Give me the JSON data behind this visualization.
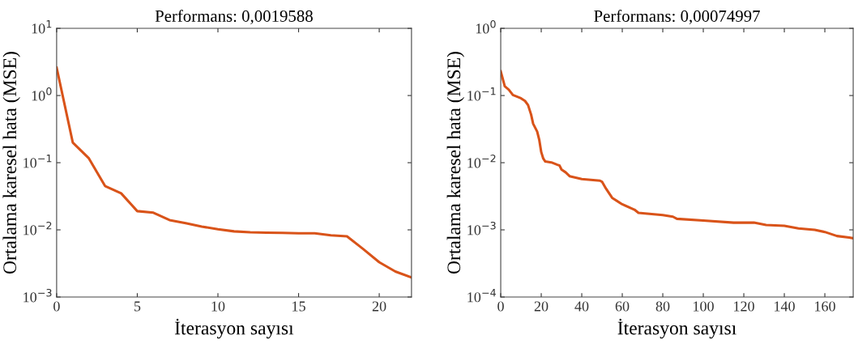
{
  "chart_data": [
    {
      "type": "line",
      "title": "Performans: 0,0019588",
      "xlabel": "İterasyon sayısı",
      "ylabel": "Ortalama karesel hata (MSE)",
      "log": "y",
      "x": [
        0,
        1,
        2,
        3,
        4,
        5,
        6,
        7,
        8,
        9,
        10,
        11,
        12,
        13,
        14,
        15,
        16,
        17,
        18,
        19,
        20,
        21,
        22
      ],
      "series": [
        {
          "color": "#d95319",
          "values": [
            2.6,
            0.2,
            0.116,
            0.045,
            0.035,
            0.019,
            0.018,
            0.014,
            0.0126,
            0.0112,
            0.0102,
            0.0095,
            0.0092,
            0.0091,
            0.009,
            0.0089,
            0.0089,
            0.0083,
            0.008,
            0.0052,
            0.0033,
            0.0024,
            0.00196
          ]
        }
      ],
      "xlim": [
        0,
        22
      ],
      "xticks": [
        0,
        5,
        10,
        15,
        20
      ],
      "ylim": [
        0.001,
        10
      ],
      "yticks": [
        {
          "value": 0.001,
          "label": "10$^{−3}$"
        },
        {
          "value": 0.01,
          "label": "10$^{−2}$"
        },
        {
          "value": 0.1,
          "label": "10$^{−1}$"
        },
        {
          "value": 1,
          "label": "10$^{0}$"
        },
        {
          "value": 10,
          "label": "10$^{1}$"
        }
      ],
      "grid": false,
      "legend": false
    },
    {
      "type": "line",
      "title": "Performans: 0,00074997",
      "xlabel": "İterasyon sayısı",
      "ylabel": "Ortalama karesel hata (MSE)",
      "log": "y",
      "x": [
        0,
        2,
        4,
        6,
        10,
        12,
        13.5,
        15,
        16,
        18,
        19,
        20,
        21,
        22,
        25,
        28,
        29,
        30,
        32,
        34,
        40,
        49,
        50,
        52,
        55,
        60,
        66,
        68,
        80,
        85,
        87,
        100,
        115,
        125,
        131,
        140,
        147,
        155,
        160,
        166,
        172,
        174
      ],
      "series": [
        {
          "color": "#d95319",
          "values": [
            0.229,
            0.137,
            0.122,
            0.102,
            0.091,
            0.083,
            0.072,
            0.052,
            0.038,
            0.029,
            0.022,
            0.0144,
            0.0115,
            0.0104,
            0.0101,
            0.0093,
            0.0091,
            0.0079,
            0.0072,
            0.0063,
            0.0057,
            0.0054,
            0.0052,
            0.0041,
            0.003,
            0.0024,
            0.002,
            0.00179,
            0.00166,
            0.00157,
            0.00146,
            0.00138,
            0.00128,
            0.00128,
            0.00118,
            0.00115,
            0.00105,
            0.001,
            0.00093,
            0.00081,
            0.00077,
            0.00075
          ]
        }
      ],
      "xlim": [
        0,
        174
      ],
      "xticks": [
        0,
        20,
        40,
        60,
        80,
        100,
        120,
        140,
        160
      ],
      "ylim": [
        0.0001,
        1
      ],
      "yticks": [
        {
          "value": 0.0001,
          "label": "10$^{−4}$"
        },
        {
          "value": 0.001,
          "label": "10$^{−3}$"
        },
        {
          "value": 0.01,
          "label": "10$^{−2}$"
        },
        {
          "value": 0.1,
          "label": "10$^{−1}$"
        },
        {
          "value": 1,
          "label": "10$^{0}$"
        }
      ],
      "grid": false,
      "legend": false
    }
  ]
}
